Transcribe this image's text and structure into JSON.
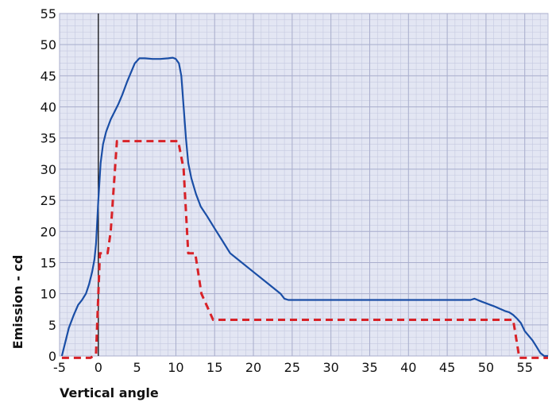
{
  "chart_data": {
    "type": "line",
    "title": "",
    "xlabel": "Vertical angle",
    "ylabel": "Emission - cd",
    "xlim": [
      -5,
      58
    ],
    "ylim": [
      0,
      55
    ],
    "xticks": [
      -5,
      0,
      5,
      10,
      15,
      20,
      25,
      30,
      35,
      40,
      45,
      50,
      55
    ],
    "yticks": [
      0,
      5,
      10,
      15,
      20,
      25,
      30,
      35,
      40,
      45,
      50,
      55
    ],
    "grid": true,
    "legend": "none",
    "colors": {
      "plot_background": "#e3e6f3",
      "grid_minor": "#c5c9e0",
      "grid_major": "#a9aecd",
      "zero_line": "#000000"
    },
    "series": [
      {
        "color": "#1a4ea6",
        "dash": "solid",
        "x": [
          -4.7,
          -4.3,
          -3.8,
          -3.2,
          -2.6,
          -2.1,
          -1.6,
          -1.2,
          -0.8,
          -0.5,
          -0.3,
          0.0,
          0.3,
          0.6,
          1.0,
          1.6,
          2.2,
          2.6,
          3.1,
          3.7,
          4.2,
          4.7,
          5.3,
          6.0,
          7.0,
          8.0,
          9.0,
          9.6,
          10.0,
          10.4,
          10.7,
          11.0,
          11.3,
          11.6,
          12.0,
          12.6,
          13.2,
          14.0,
          15.0,
          16.0,
          17.0,
          18.0,
          20.0,
          22.0,
          23.5,
          24.0,
          24.5,
          26.0,
          30.0,
          35.0,
          40.0,
          45.0,
          47.0,
          48.0,
          48.5,
          49.5,
          51.0,
          52.5,
          53.0,
          53.5,
          54.0,
          54.5,
          55.0,
          56.0,
          56.5,
          57.0,
          57.5,
          58.0
        ],
        "y": [
          0,
          2,
          4.5,
          6.5,
          8.2,
          9,
          10,
          11.5,
          13.5,
          15.5,
          18,
          25,
          31,
          34,
          36,
          38,
          39.5,
          40.5,
          42,
          44,
          45.5,
          47,
          47.8,
          47.8,
          47.7,
          47.7,
          47.8,
          47.9,
          47.7,
          47,
          45,
          40,
          35,
          31,
          28.5,
          26,
          24,
          22.5,
          20.5,
          18.5,
          16.5,
          15.5,
          13.5,
          11.5,
          10,
          9.2,
          9,
          9,
          9,
          9,
          9,
          9,
          9,
          9,
          9.2,
          8.7,
          8,
          7.2,
          7,
          6.6,
          6,
          5.3,
          4,
          2.5,
          1.5,
          0.5,
          0,
          0
        ]
      },
      {
        "color": "#d82228",
        "dash": "dashed",
        "x": [
          -4.7,
          -1,
          -0.3,
          0.2,
          1.2,
          1.6,
          2.4,
          10.3,
          11,
          11.6,
          12.5,
          13.3,
          14.2,
          14.8,
          53,
          53.5,
          54.3,
          55.5,
          58
        ],
        "y": [
          -0.3,
          -0.3,
          0.3,
          16.5,
          16.5,
          20,
          34.5,
          34.5,
          30,
          16.5,
          16.5,
          10,
          7.5,
          5.8,
          5.8,
          5.8,
          -0.3,
          -0.3,
          -0.3
        ]
      }
    ]
  }
}
